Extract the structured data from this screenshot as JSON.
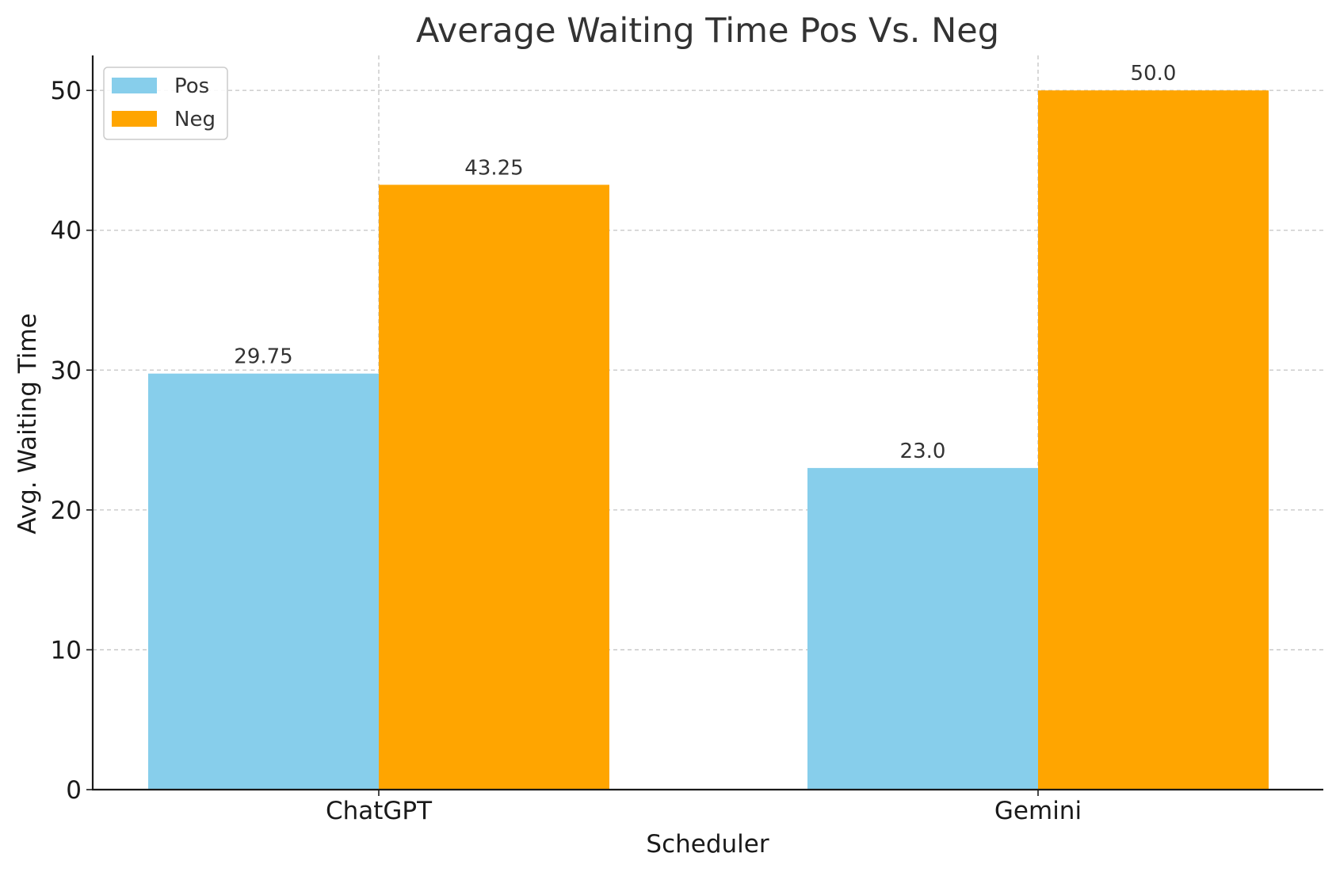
{
  "chart_data": {
    "type": "bar",
    "title": "Average Waiting Time Pos Vs. Neg",
    "xlabel": "Scheduler",
    "ylabel": "Avg. Waiting Time",
    "categories": [
      "ChatGPT",
      "Gemini"
    ],
    "series": [
      {
        "name": "Pos",
        "values": [
          29.75,
          23.0
        ],
        "value_labels": [
          "29.75",
          "23.0"
        ],
        "color": "#87ceeb"
      },
      {
        "name": "Neg",
        "values": [
          43.25,
          50.0
        ],
        "value_labels": [
          "43.25",
          "50.0"
        ],
        "color": "#ffa500"
      }
    ],
    "ylim": [
      0,
      52.5
    ],
    "yticks": [
      0,
      10,
      20,
      30,
      40,
      50
    ],
    "grid": true,
    "legend": "top-left"
  }
}
